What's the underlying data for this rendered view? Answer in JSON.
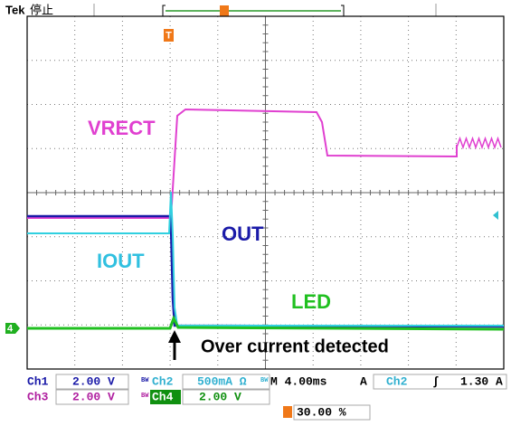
{
  "header": {
    "brand": "Tek",
    "status": "停止"
  },
  "annotations": {
    "vrect": "VRECT",
    "out": "OUT",
    "iout": "IOUT",
    "led": "LED",
    "event": "Over current detected",
    "ground_marker": "4"
  },
  "status_bar": {
    "ch1": {
      "name": "Ch1",
      "scale": "2.00 V"
    },
    "ch2": {
      "name": "Ch2",
      "scale": "500mA Ω"
    },
    "ch3": {
      "name": "Ch3",
      "scale": "2.00 V"
    },
    "ch4": {
      "name": "Ch4",
      "scale": "2.00 V"
    },
    "bw": "BW",
    "timebase": "M 4.00ms",
    "trigger": {
      "mode": "A",
      "source": "Ch2",
      "slope": "∫",
      "level": "1.30 A"
    },
    "position": "30.00 %"
  }
}
